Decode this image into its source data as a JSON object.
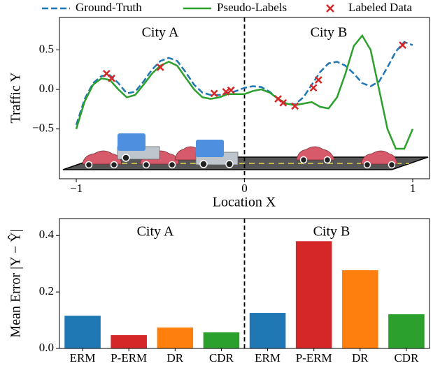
{
  "chart_data": [
    {
      "type": "line",
      "xlabel": "Location X",
      "ylabel": "Traffic Y",
      "annotations": [
        "City A",
        "City B"
      ],
      "x": [
        -1,
        -0.95,
        -0.9,
        -0.85,
        -0.8,
        -0.75,
        -0.7,
        -0.65,
        -0.6,
        -0.55,
        -0.5,
        -0.45,
        -0.4,
        -0.35,
        -0.3,
        -0.25,
        -0.2,
        -0.15,
        -0.1,
        -0.05,
        0,
        0.05,
        0.1,
        0.15,
        0.2,
        0.25,
        0.3,
        0.35,
        0.4,
        0.45,
        0.5,
        0.55,
        0.6,
        0.65,
        0.7,
        0.75,
        0.8,
        0.85,
        0.9,
        0.95,
        1
      ],
      "series": [
        {
          "name": "Ground-Truth",
          "color": "#1f77b4",
          "dashed": true,
          "values": [
            -0.45,
            -0.12,
            0.08,
            0.17,
            0.18,
            0.08,
            -0.05,
            -0.03,
            0.1,
            0.25,
            0.36,
            0.4,
            0.36,
            0.22,
            0.06,
            -0.04,
            -0.07,
            -0.07,
            -0.05,
            -0.02,
            0.02,
            0.04,
            0.03,
            -0.03,
            -0.12,
            -0.18,
            -0.19,
            -0.1,
            0.06,
            0.22,
            0.33,
            0.35,
            0.3,
            0.2,
            0.08,
            0.04,
            0.1,
            0.28,
            0.48,
            0.6,
            0.56
          ]
        },
        {
          "name": "Pseudo-Labels",
          "color": "#2ca02c",
          "dashed": false,
          "values": [
            -0.5,
            -0.15,
            0.06,
            0.14,
            0.12,
            0.0,
            -0.1,
            -0.07,
            0.06,
            0.2,
            0.3,
            0.35,
            0.3,
            0.15,
            0.0,
            -0.1,
            -0.12,
            -0.1,
            -0.06,
            -0.06,
            -0.06,
            -0.02,
            0.0,
            -0.04,
            -0.12,
            -0.18,
            -0.2,
            -0.18,
            -0.16,
            -0.22,
            -0.24,
            -0.1,
            0.2,
            0.55,
            0.68,
            0.5,
            0.0,
            -0.5,
            -0.75,
            -0.75,
            -0.5
          ]
        }
      ],
      "points": {
        "name": "Labeled Data",
        "color": "#d62728",
        "x": [
          -0.82,
          -0.79,
          -0.5,
          -0.18,
          -0.11,
          -0.08,
          0.2,
          0.23,
          0.3,
          0.41,
          0.44,
          0.94
        ],
        "y": [
          0.2,
          0.14,
          0.28,
          -0.05,
          -0.03,
          -0.01,
          -0.12,
          -0.17,
          -0.21,
          0.02,
          0.12,
          0.56
        ]
      },
      "vline": 0,
      "xlim": [
        -1.1,
        1.1
      ],
      "ylim": [
        -1.13,
        0.91
      ],
      "xticks": [
        {
          "value": -1,
          "label": "−1"
        },
        0,
        1
      ],
      "yticks": [
        0.5,
        {
          "value": 0,
          "label": "0.0"
        },
        {
          "value": -0.5,
          "label": "−0.5"
        }
      ]
    },
    {
      "type": "bar",
      "ylabel": "Mean Error |Y − Ŷ|",
      "annotations": [
        "City A",
        "City B"
      ],
      "categories": [
        "ERM",
        "P-ERM",
        "DR",
        "CDR",
        "ERM",
        "P-ERM",
        "DR",
        "CDR"
      ],
      "values": [
        0.116,
        0.047,
        0.074,
        0.057,
        0.126,
        0.38,
        0.277,
        0.121
      ],
      "colors": [
        "#1f77b4",
        "#d62728",
        "#ff7f0e",
        "#2ca02c",
        "#1f77b4",
        "#d62728",
        "#ff7f0e",
        "#2ca02c"
      ],
      "ylim": [
        0,
        0.46
      ],
      "yticks": [
        {
          "value": 0,
          "label": "0.0"
        },
        0.2,
        0.4
      ]
    }
  ]
}
